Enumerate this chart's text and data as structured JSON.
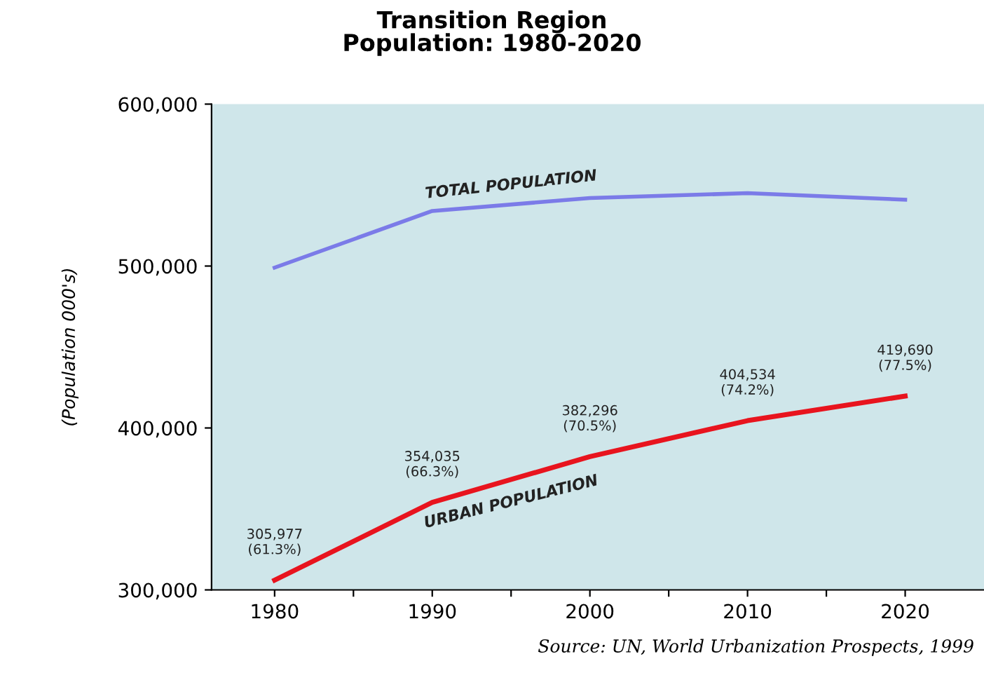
{
  "chart_data": {
    "type": "line",
    "title": "Transition Region\nPopulation: 1980-2020",
    "ylabel": "(Population 000's)",
    "x": [
      1980,
      1990,
      2000,
      2010,
      2020
    ],
    "series": [
      {
        "name": "TOTAL POPULATION",
        "color": "#7b7be8",
        "values": [
          499000,
          534000,
          542000,
          545000,
          541000
        ]
      },
      {
        "name": "URBAN POPULATION",
        "color": "#e8141e",
        "values": [
          305977,
          354035,
          382296,
          404534,
          419690
        ],
        "value_labels": [
          "305,977\n(61.3%)",
          "354,035\n(66.3%)",
          "382,296\n(70.5%)",
          "404,534\n(74.2%)",
          "419,690\n(77.5%)"
        ]
      }
    ],
    "xlim": [
      1976,
      2025
    ],
    "xticks": [
      1980,
      {
        "value": 1985,
        "label": null
      },
      1990,
      {
        "value": 1995,
        "label": null
      },
      2000,
      {
        "value": 2005,
        "label": null
      },
      2010,
      {
        "value": 2015,
        "label": null
      },
      2020
    ],
    "ylim": [
      300000,
      600000
    ],
    "yticks": [
      {
        "value": 300000,
        "label": "300,000"
      },
      {
        "value": 400000,
        "label": "400,000"
      },
      {
        "value": 500000,
        "label": "500,000"
      },
      {
        "value": 600000,
        "label": "600,000"
      }
    ],
    "grid": false,
    "legend": false,
    "marker": "none",
    "line_style": "solid",
    "annotations": [
      "Source: UN, World Urbanization Prospects, 1999"
    ]
  }
}
